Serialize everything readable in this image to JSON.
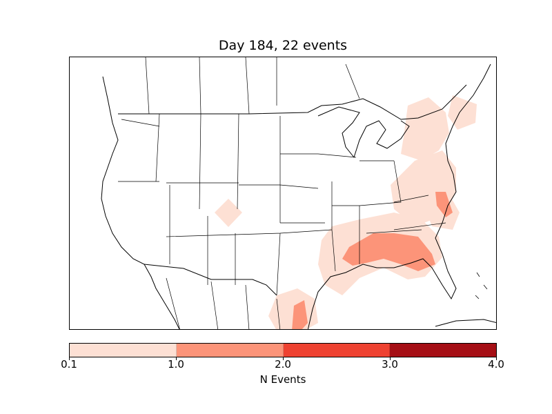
{
  "figure": {
    "title": "Day 184, 22 events"
  },
  "colorbar": {
    "label": "N Events",
    "ticks": [
      "0.1",
      "1.0",
      "2.0",
      "3.0",
      "4.0"
    ],
    "bins": [
      {
        "range": "0.1 - 1.0",
        "color": "#fde0d4"
      },
      {
        "range": "1.0 - 2.0",
        "color": "#fc9479"
      },
      {
        "range": "2.0 - 3.0",
        "color": "#ee4231"
      },
      {
        "range": "3.0 - 4.0",
        "color": "#a50f15"
      }
    ]
  },
  "map_data": {
    "region": "North America (CONUS, southern Canada, northern Mexico)",
    "basemap": "coastlines, country and state borders"
  }
}
